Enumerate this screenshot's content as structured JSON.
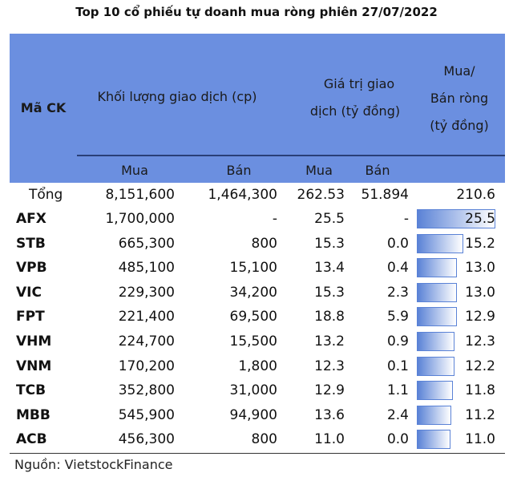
{
  "chart_data": {
    "type": "table",
    "title": "Top 10 cổ phiếu tự doanh mua ròng phiên 27/07/2022",
    "headers": {
      "code": "Mã CK",
      "volume": "Khối lượng giao dịch (cp)",
      "value_line1": "Giá trị giao",
      "value_line2": "dịch (tỷ đồng)",
      "net_line1": "Mua/",
      "net_line2": "Bán ròng",
      "net_line3": "(tỷ đồng)",
      "buy": "Mua",
      "sell": "Bán",
      "buy2": "Mua",
      "sell2": "Bán"
    },
    "total": {
      "label": "Tổng",
      "vol_buy": "8,151,600",
      "vol_sell": "1,464,300",
      "val_buy": "262.53",
      "val_sell": "51.894",
      "net": "210.6"
    },
    "max_net": 25.5,
    "rows": [
      {
        "code": "AFX",
        "vol_buy": "1,700,000",
        "vol_sell": "-",
        "val_buy": "25.5",
        "val_sell": "-",
        "net": "25.5",
        "net_value": 25.5
      },
      {
        "code": "STB",
        "vol_buy": "665,300",
        "vol_sell": "800",
        "val_buy": "15.3",
        "val_sell": "0.0",
        "net": "15.2",
        "net_value": 15.2
      },
      {
        "code": "VPB",
        "vol_buy": "485,100",
        "vol_sell": "15,100",
        "val_buy": "13.4",
        "val_sell": "0.4",
        "net": "13.0",
        "net_value": 13.0
      },
      {
        "code": "VIC",
        "vol_buy": "229,300",
        "vol_sell": "34,200",
        "val_buy": "15.3",
        "val_sell": "2.3",
        "net": "13.0",
        "net_value": 13.0
      },
      {
        "code": "FPT",
        "vol_buy": "221,400",
        "vol_sell": "69,500",
        "val_buy": "18.8",
        "val_sell": "5.9",
        "net": "12.9",
        "net_value": 12.9
      },
      {
        "code": "VHM",
        "vol_buy": "224,700",
        "vol_sell": "15,500",
        "val_buy": "13.2",
        "val_sell": "0.9",
        "net": "12.3",
        "net_value": 12.3
      },
      {
        "code": "VNM",
        "vol_buy": "170,200",
        "vol_sell": "1,800",
        "val_buy": "12.3",
        "val_sell": "0.1",
        "net": "12.2",
        "net_value": 12.2
      },
      {
        "code": "TCB",
        "vol_buy": "352,800",
        "vol_sell": "31,000",
        "val_buy": "12.9",
        "val_sell": "1.1",
        "net": "11.8",
        "net_value": 11.8
      },
      {
        "code": "MBB",
        "vol_buy": "545,900",
        "vol_sell": "94,900",
        "val_buy": "13.6",
        "val_sell": "2.4",
        "net": "11.2",
        "net_value": 11.2
      },
      {
        "code": "ACB",
        "vol_buy": "456,300",
        "vol_sell": "800",
        "val_buy": "11.0",
        "val_sell": "0.0",
        "net": "11.0",
        "net_value": 11.0
      }
    ],
    "source": "Nguồn: VietstockFinance",
    "colors": {
      "header": "#6b8fe0",
      "bar": "#5a82d6"
    }
  }
}
